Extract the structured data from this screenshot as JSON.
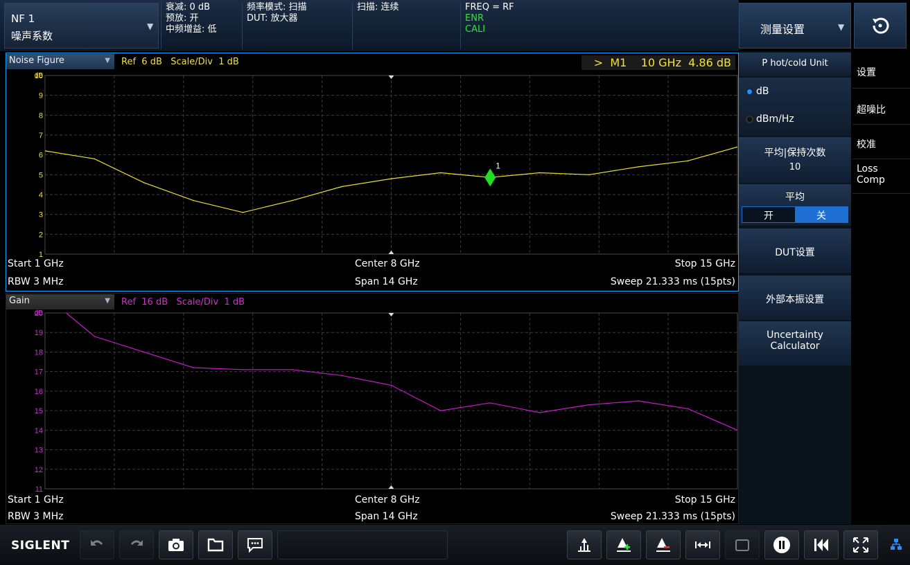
{
  "header": {
    "mode_line1": "NF 1",
    "mode_line2": "噪声系数",
    "atten": "衰减: 0 dB",
    "preamp": "预放: 开",
    "if_gain": "中频增益: 低",
    "freq_mode": "频率模式: 扫描",
    "dut": "DUT: 放大器",
    "sweep": "扫描: 连续",
    "freq": "FREQ = RF",
    "enr": "ENR",
    "cali": "CALI"
  },
  "menu": {
    "title": "测量设置",
    "unit_title": "P hot/cold Unit",
    "unit_options": [
      "dB",
      "dBm/Hz"
    ],
    "unit_selected": "dB",
    "avg_count_title": "平均|保持次数",
    "avg_count_value": "10",
    "avg_title": "平均",
    "avg_on": "开",
    "avg_off": "关",
    "avg_selected": "关",
    "dut_setup": "DUT设置",
    "ext_lo": "外部本振设置",
    "uncertainty_1": "Uncertainty",
    "uncertainty_2": "Calculator"
  },
  "tabs": [
    "设置",
    "超噪比",
    "校准",
    "Loss",
    "Comp"
  ],
  "nf_window": {
    "trace_name": "Noise Figure",
    "ref": "Ref  6 dB   Scale/Div  1 dB",
    "marker_readout": ">  M1    10 GHz  4.86 dB",
    "marker_label": "1",
    "start": "Start  1 GHz",
    "center": "Center  8 GHz",
    "stop": "Stop  15 GHz",
    "rbw": "RBW  3 MHz",
    "span": "Span  14 GHz",
    "sweep": "Sweep  21.333 ms (15pts)"
  },
  "gain_window": {
    "trace_name": "Gain",
    "ref": "Ref  16 dB   Scale/Div  1 dB",
    "start": "Start  1 GHz",
    "center": "Center  8 GHz",
    "stop": "Stop  15 GHz",
    "rbw": "RBW  3 MHz",
    "span": "Span  14 GHz",
    "sweep": "Sweep  21.333 ms (15pts)"
  },
  "toolbar": {
    "brand": "SIGLENT"
  },
  "colors": {
    "nf_trace": "#e8e032",
    "gain_trace": "#c81ad0",
    "marker": "#22dd22",
    "nf_tick": "#f0e040",
    "gain_tick": "#d030d0",
    "active_border": "#1aa0ff"
  },
  "chart_data": [
    {
      "type": "line",
      "title": "Noise Figure",
      "ylabel": "dB",
      "x_unit": "GHz",
      "x": [
        1,
        2,
        3,
        4,
        5,
        6,
        7,
        8,
        9,
        10,
        11,
        12,
        13,
        14,
        15
      ],
      "xlim": [
        1,
        15
      ],
      "ylim": [
        1,
        10
      ],
      "yticks": [
        "1",
        "2",
        "3",
        "4",
        "5",
        "6",
        "7",
        "8",
        "9",
        "10"
      ],
      "grid": true,
      "series": [
        {
          "values": [
            6.2,
            5.8,
            4.6,
            3.7,
            3.1,
            3.7,
            4.4,
            4.8,
            5.1,
            4.86,
            5.1,
            5.0,
            5.4,
            5.7,
            6.4
          ]
        }
      ],
      "marker": {
        "x": 10,
        "y": 4.86,
        "label": "1"
      }
    },
    {
      "type": "line",
      "title": "Gain",
      "ylabel": "dB",
      "x_unit": "GHz",
      "x": [
        1,
        2,
        3,
        4,
        5,
        6,
        7,
        8,
        9,
        10,
        11,
        12,
        13,
        14,
        15
      ],
      "xlim": [
        1,
        15
      ],
      "ylim": [
        11,
        20
      ],
      "yticks": [
        "11",
        "12",
        "13",
        "14",
        "15",
        "16",
        "17",
        "18",
        "19",
        "20"
      ],
      "grid": true,
      "series": [
        {
          "values": [
            20.9,
            18.8,
            18.0,
            17.2,
            17.1,
            17.1,
            16.8,
            16.3,
            15.0,
            15.4,
            14.9,
            15.3,
            15.5,
            15.1,
            14.0
          ]
        }
      ]
    }
  ]
}
